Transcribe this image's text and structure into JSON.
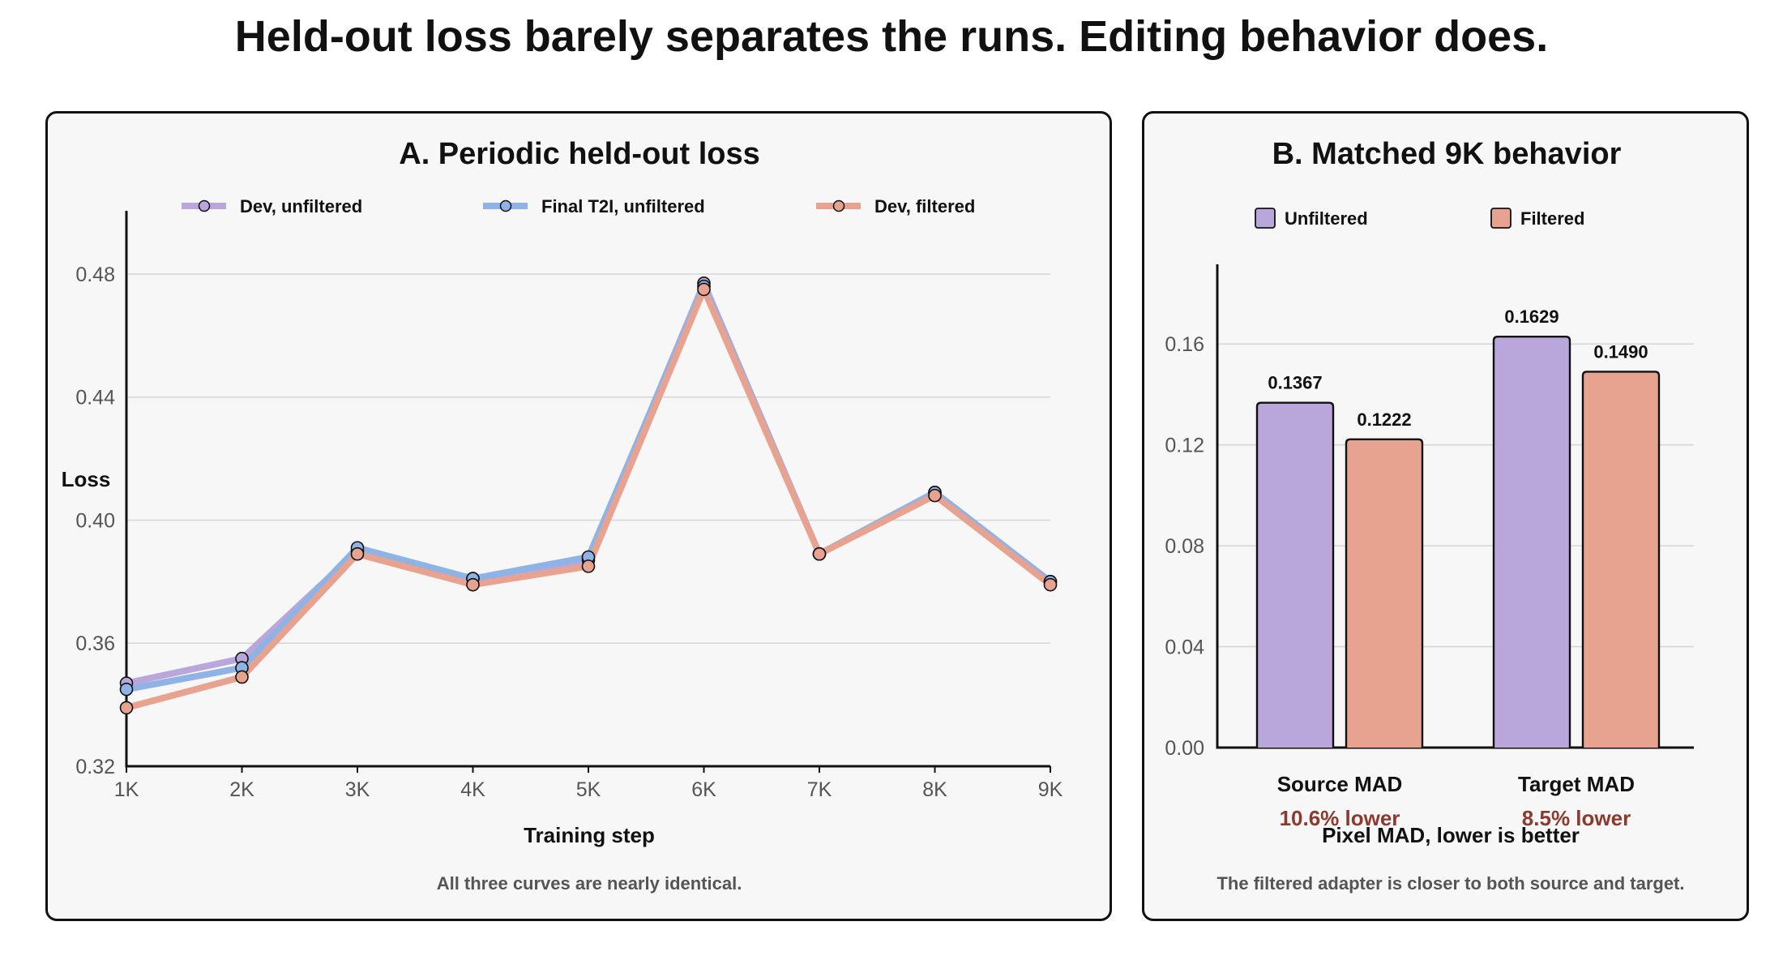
{
  "title": "Held-out loss barely separates the runs. Editing behavior does.",
  "chart_data": [
    {
      "type": "line",
      "title": "A. Periodic held-out loss",
      "xlabel": "Training step",
      "ylabel": "Loss",
      "categories": [
        "1K",
        "2K",
        "3K",
        "4K",
        "5K",
        "6K",
        "7K",
        "8K",
        "9K"
      ],
      "ylim": [
        0.32,
        0.49
      ],
      "yticks": [
        "0.32",
        "0.36",
        "0.40",
        "0.44",
        "0.48"
      ],
      "grid": true,
      "legend": "top",
      "series": [
        {
          "name": "Dev, unfiltered",
          "color": "#b9a7dc",
          "values": [
            0.347,
            0.355,
            0.39,
            0.381,
            0.387,
            0.477,
            0.389,
            0.409,
            0.38
          ]
        },
        {
          "name": "Final T2I, unfiltered",
          "color": "#8fb3e5",
          "values": [
            0.345,
            0.352,
            0.391,
            0.381,
            0.388,
            0.476,
            0.389,
            0.409,
            0.38
          ]
        },
        {
          "name": "Dev, filtered",
          "color": "#e8a390",
          "values": [
            0.339,
            0.349,
            0.389,
            0.379,
            0.385,
            0.475,
            0.389,
            0.408,
            0.379
          ]
        }
      ],
      "caption": "All three curves are nearly identical."
    },
    {
      "type": "bar",
      "title": "B. Matched 9K behavior",
      "xlabel": "Pixel MAD, lower is better",
      "categories": [
        "Source MAD",
        "Target MAD"
      ],
      "category_notes": [
        "10.6% lower",
        "8.5% lower"
      ],
      "ylim": [
        0,
        0.18
      ],
      "yticks": [
        "0.00",
        "0.04",
        "0.08",
        "0.12",
        "0.16"
      ],
      "grid": true,
      "legend": "top",
      "series": [
        {
          "name": "Unfiltered",
          "color": "#b9a7dc",
          "values": [
            0.1367,
            0.1629
          ],
          "labels": [
            "0.1367",
            "0.1629"
          ]
        },
        {
          "name": "Filtered",
          "color": "#e8a390",
          "values": [
            0.1222,
            0.149
          ],
          "labels": [
            "0.1222",
            "0.1490"
          ]
        }
      ],
      "caption": "The filtered adapter is closer to both source and target."
    }
  ]
}
